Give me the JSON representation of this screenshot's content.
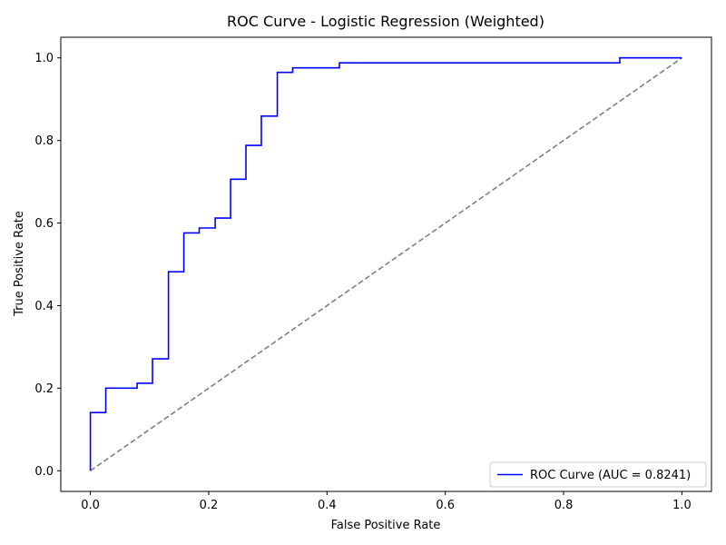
{
  "chart_data": {
    "type": "line",
    "title": "ROC Curve - Logistic Regression (Weighted)",
    "xlabel": "False Positive Rate",
    "ylabel": "True Positive Rate",
    "xlim": [
      -0.05,
      1.05
    ],
    "ylim": [
      -0.05,
      1.05
    ],
    "xticks": [
      0.0,
      0.2,
      0.4,
      0.6,
      0.8,
      1.0
    ],
    "yticks": [
      0.0,
      0.2,
      0.4,
      0.6,
      0.8,
      1.0
    ],
    "xtick_labels": [
      "0.0",
      "0.2",
      "0.4",
      "0.6",
      "0.8",
      "1.0"
    ],
    "ytick_labels": [
      "0.0",
      "0.2",
      "0.4",
      "0.6",
      "0.8",
      "1.0"
    ],
    "grid": false,
    "legend_position": "lower-right",
    "series": [
      {
        "name": "ROC Curve (AUC = 0.8241)",
        "color": "#0000ff",
        "style": "solid",
        "x": [
          0.0,
          0.0,
          0.026,
          0.026,
          0.079,
          0.079,
          0.105,
          0.105,
          0.132,
          0.132,
          0.158,
          0.158,
          0.184,
          0.184,
          0.211,
          0.211,
          0.237,
          0.237,
          0.263,
          0.263,
          0.289,
          0.289,
          0.316,
          0.316,
          0.342,
          0.342,
          0.421,
          0.421,
          0.895,
          0.895,
          1.0
        ],
        "y": [
          0.0,
          0.141,
          0.141,
          0.2,
          0.2,
          0.212,
          0.212,
          0.271,
          0.271,
          0.482,
          0.482,
          0.576,
          0.576,
          0.588,
          0.588,
          0.612,
          0.612,
          0.706,
          0.706,
          0.788,
          0.788,
          0.859,
          0.859,
          0.965,
          0.965,
          0.976,
          0.976,
          0.988,
          0.988,
          1.0,
          1.0
        ]
      },
      {
        "name": "",
        "color": "#808080",
        "style": "dashed",
        "x": [
          0.0,
          1.0
        ],
        "y": [
          0.0,
          1.0
        ]
      }
    ]
  }
}
